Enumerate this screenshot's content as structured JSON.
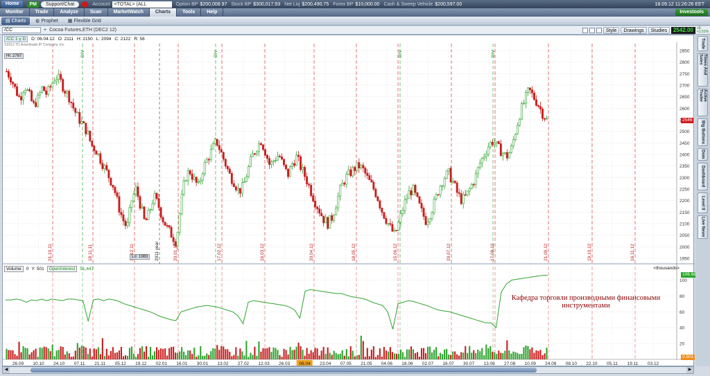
{
  "topbar": {
    "home": "Home",
    "pm": "PM",
    "support": "Support/Chat",
    "account_label": "Account",
    "account_value": "<TOTAL> (ALL ACCOUNTS)",
    "option_bp_label": "Option BP",
    "option_bp": "$200,008.97",
    "stock_bp_label": "Stock BP",
    "stock_bp": "$300,017.93",
    "net_liq_label": "Net Liq",
    "net_liq": "$200,490.75",
    "forex_bp_label": "Forex BP",
    "forex_bp": "$10,000.00",
    "cash_label": "Cash & Sweep Vehicle",
    "cash": "$200,597.00",
    "datetime": "18.09.12 11:26:26 EET"
  },
  "nav": {
    "tabs": [
      "Monitor",
      "Trade",
      "Analyze",
      "Scan",
      "MarketWatch",
      "Charts",
      "Tools",
      "Help"
    ],
    "active": "Charts",
    "investools": "Investools"
  },
  "subtabs": {
    "items": [
      "Charts",
      "Prophet",
      "Flexible Grid"
    ]
  },
  "toolbar": {
    "symbol": "/CC",
    "description": "Cocoa Futures,ETH (DEC2 12)",
    "style": "Style",
    "drawings": "Drawings",
    "studies": "Studies",
    "last_price": "2542.00",
    "change_top": "+8",
    "change_bottom": "+1.51%"
  },
  "chart_info": {
    "period": "/CC 1 y D",
    "date": "D: 06.04.12",
    "open": "O: 2111",
    "high": "H: 2150",
    "low": "L: 2094",
    "close": "C: 2122",
    "range": "R: 56",
    "watermark": "©2012 TD Ameritrade IP Company, Inc.",
    "hi_label": "Hi: 2787",
    "lo_label": "Lo: 1983",
    "last_badge": "2546"
  },
  "volume_info": {
    "label": "Volume",
    "value": "0",
    "y_value": "Y: 501",
    "oi_label": "OpenInterest",
    "oi_value": "51,447",
    "units": "<thousands>",
    "oi_badge": "106.688",
    "vol_badge": "0.501"
  },
  "caption": "Кафедра торговли производными финансовыми инструментами",
  "right_tabs": [
    "Trade",
    "Times And Sales",
    "Active Trader",
    "Big Buttons",
    "Dom",
    "Dashboard",
    "Level II",
    "Live News"
  ],
  "chart_data": {
    "type": "candlestick",
    "title": "Cocoa Futures,ETH (DEC2 12)",
    "y_ticks": [
      2850,
      2800,
      2750,
      2700,
      2650,
      2600,
      2550,
      2500,
      2450,
      2400,
      2350,
      2300,
      2250,
      2200,
      2150,
      2100,
      2050,
      2000,
      1950
    ],
    "ylim": [
      1935,
      2880
    ],
    "x_ticks": [
      "26.09",
      "10.10",
      "24.10",
      "07.11",
      "21.11",
      "05.12",
      "19.12",
      "02.01",
      "16.01",
      "30.01",
      "13.02",
      "27.02",
      "12.03",
      "26.03",
      "06.04",
      "23.04",
      "07.05",
      "21.05",
      "04.06",
      "18.06",
      "02.07",
      "16.07",
      "30.07",
      "13.08",
      "27.08",
      "10.09",
      "24.09",
      "08.10",
      "22.10",
      "05.11",
      "19.11",
      "03.12"
    ],
    "highlight_tick": "06.04",
    "expiry_labels": [
      "21.10.11",
      "18.11.11",
      "19.12.11",
      "20.01.12",
      "17.02.12",
      "16.03.12",
      "20.04.12",
      "18.05.12",
      "15.06.12",
      "20.07.12",
      "17.08.12",
      "21.09.12",
      "19.10.12",
      "16.11.12"
    ],
    "event_labels": [
      "2011 year"
    ],
    "green_markers": [
      "DIV",
      "DIV",
      "DIV",
      "DIV"
    ],
    "close_path": [
      2760,
      2730,
      2680,
      2640,
      2700,
      2660,
      2610,
      2640,
      2690,
      2660,
      2700,
      2740,
      2720,
      2680,
      2650,
      2600,
      2560,
      2530,
      2500,
      2440,
      2420,
      2380,
      2340,
      2300,
      2260,
      2180,
      2120,
      2080,
      2200,
      2250,
      2180,
      2100,
      2150,
      2220,
      2180,
      2120,
      2080,
      2050,
      2020,
      2180,
      2300,
      2330,
      2290,
      2260,
      2340,
      2380,
      2420,
      2460,
      2410,
      2360,
      2310,
      2280,
      2240,
      2260,
      2330,
      2390,
      2430,
      2460,
      2410,
      2350,
      2380,
      2400,
      2350,
      2310,
      2360,
      2390,
      2340,
      2300,
      2250,
      2200,
      2160,
      2120,
      2100,
      2130,
      2200,
      2260,
      2300,
      2320,
      2340,
      2350,
      2330,
      2290,
      2260,
      2220,
      2160,
      2120,
      2080,
      2050,
      2110,
      2180,
      2230,
      2250,
      2200,
      2150,
      2110,
      2150,
      2200,
      2260,
      2300,
      2320,
      2280,
      2230,
      2200,
      2220,
      2260,
      2300,
      2360,
      2400,
      2440,
      2460,
      2430,
      2410,
      2390,
      2420,
      2500,
      2580,
      2630,
      2680,
      2650,
      2620,
      2580,
      2550
    ],
    "volume_ylim": [
      0,
      110
    ],
    "volume_ticks": [
      100,
      80,
      60,
      40,
      20
    ],
    "open_interest": [
      75,
      75,
      76,
      75,
      72,
      75,
      74,
      76,
      74,
      76,
      75,
      74,
      76,
      76,
      75,
      74,
      48,
      75,
      76,
      74,
      76,
      75,
      73,
      70,
      68,
      66,
      64,
      62,
      60,
      57,
      54,
      52,
      50,
      49,
      60,
      62,
      64,
      66,
      67,
      68,
      67,
      66,
      64,
      62,
      60,
      55,
      45,
      72,
      74,
      73,
      72,
      71,
      70,
      69,
      68,
      66,
      62,
      52,
      86,
      88,
      87,
      86,
      85,
      84,
      83,
      83,
      81,
      79,
      78,
      77,
      75,
      72,
      70,
      68,
      60,
      38,
      70,
      72,
      74,
      73,
      71,
      69,
      67,
      64,
      62,
      61,
      60,
      58,
      56,
      54,
      52,
      50,
      48,
      46,
      46,
      40,
      85,
      95,
      100,
      101,
      102,
      103,
      104,
      105,
      106,
      106
    ]
  }
}
